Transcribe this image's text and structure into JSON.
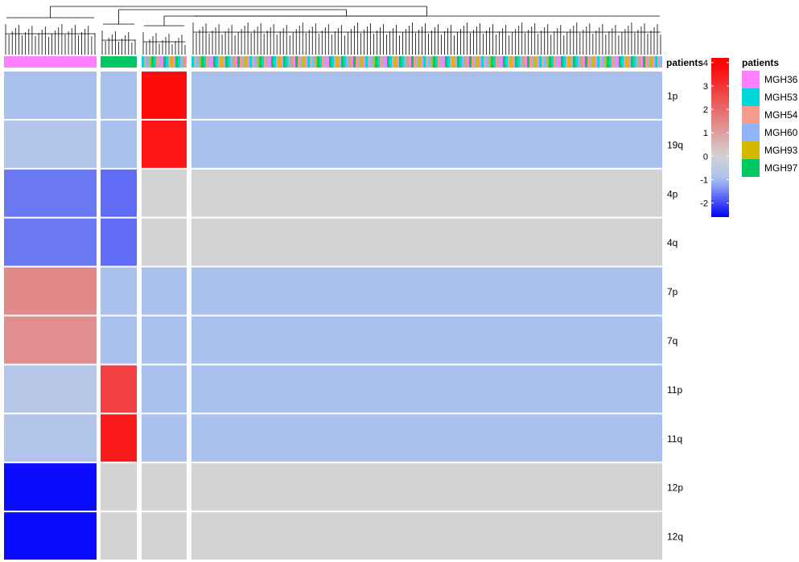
{
  "chart_data": {
    "type": "heatmap",
    "annotation_title": "patients",
    "rows": [
      "1p",
      "19q",
      "4p",
      "4q",
      "7p",
      "7q",
      "11p",
      "11q",
      "12p",
      "12q"
    ],
    "clusters": [
      {
        "id": "cluster-1",
        "patients": [
          "MGH36"
        ],
        "values": {
          "1p": -1,
          "19q": -0.8,
          "4p": -1.6,
          "4q": -1.6,
          "7p": 1.4,
          "7q": 1.3,
          "11p": -0.7,
          "11q": -0.8,
          "12p": -2.5,
          "12q": -2.5
        }
      },
      {
        "id": "cluster-2",
        "patients": [
          "MGH97"
        ],
        "values": {
          "1p": -1,
          "19q": -1,
          "4p": -1.7,
          "4q": -1.7,
          "7p": -1,
          "7q": -1,
          "11p": 2.8,
          "11q": 3.5,
          "12p": 0,
          "12q": 0
        }
      },
      {
        "id": "cluster-3",
        "patients": [
          "MGH53",
          "MGH54",
          "MGH60",
          "MGH93",
          "MGH36",
          "MGH97"
        ],
        "values": {
          "1p": 3.8,
          "19q": 3.6,
          "4p": 0,
          "4q": 0,
          "7p": -1,
          "7q": -1,
          "11p": -1,
          "11q": -1,
          "12p": 0,
          "12q": 0
        }
      },
      {
        "id": "cluster-4",
        "patients": [
          "MGH53",
          "MGH54",
          "MGH60",
          "MGH93",
          "MGH36",
          "MGH97"
        ],
        "values": {
          "1p": -1,
          "19q": -1,
          "4p": 0,
          "4q": 0,
          "7p": -1,
          "7q": -1,
          "11p": -1,
          "11q": -1,
          "12p": 0,
          "12q": 0
        }
      }
    ],
    "colorbar": {
      "ticks": [
        4,
        3,
        2,
        1,
        0,
        -1,
        -2
      ],
      "range": [
        -2.6,
        4.2
      ],
      "colors": {
        "high": "#ff0000",
        "mid": "#d3d3d3",
        "light_low": "#9fb4f0",
        "low": "#0000ff"
      }
    },
    "legend": {
      "title": "patients",
      "entries": [
        {
          "label": "MGH36",
          "color": "#ff80ff"
        },
        {
          "label": "MGH53",
          "color": "#00d8d8"
        },
        {
          "label": "MGH54",
          "color": "#f79b8a"
        },
        {
          "label": "MGH60",
          "color": "#8fb4f7"
        },
        {
          "label": "MGH93",
          "color": "#d4b800"
        },
        {
          "label": "MGH97",
          "color": "#00c864"
        }
      ]
    }
  }
}
